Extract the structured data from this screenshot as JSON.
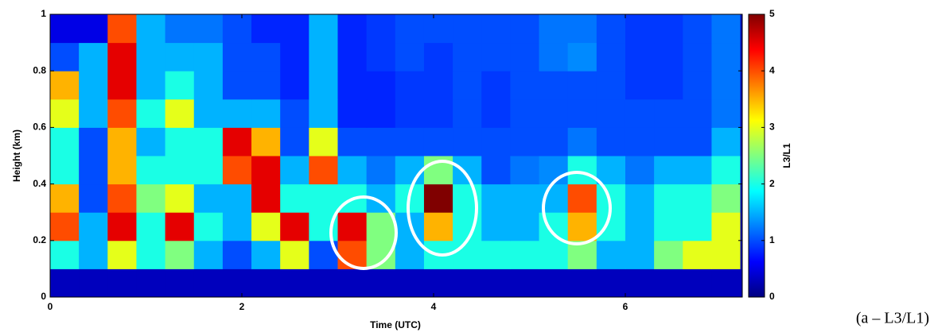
{
  "chart_data": {
    "type": "heatmap",
    "xlabel": "Time (UTC)",
    "ylabel": "Height (km)",
    "colorbar_label": "L3/L1",
    "caption": "(a – L3/L1)",
    "xlim": [
      0,
      7.22
    ],
    "xticks": [
      0,
      2,
      4,
      6
    ],
    "ylim": [
      0,
      1
    ],
    "yticks": [
      0,
      0.2,
      0.4,
      0.6,
      0.8,
      1
    ],
    "clim": [
      0,
      5
    ],
    "cticks": [
      0,
      1,
      2,
      3,
      4,
      5
    ],
    "colormap": "jet",
    "xbins": [
      0,
      0.3,
      0.6,
      0.9,
      1.2,
      1.5,
      1.8,
      2.1,
      2.4,
      2.7,
      3.0,
      3.3,
      3.6,
      3.9,
      4.2,
      4.5,
      4.8,
      5.1,
      5.4,
      5.7,
      6.0,
      6.3,
      6.6,
      6.9,
      7.2
    ],
    "ybins": [
      0,
      0.1,
      0.2,
      0.3,
      0.4,
      0.5,
      0.6,
      0.7,
      0.8,
      0.9,
      1.0
    ],
    "z": [
      [
        0.3,
        0.3,
        0.3,
        0.3,
        0.3,
        0.3,
        0.3,
        0.3,
        0.3,
        0.3,
        0.3,
        0.3,
        0.3,
        0.3,
        0.3,
        0.3,
        0.3,
        0.3,
        0.3,
        0.3,
        0.3,
        0.3,
        0.3,
        0.3
      ],
      [
        2,
        1.5,
        3,
        2,
        2.5,
        1.5,
        1,
        1.5,
        3,
        1,
        4,
        2.5,
        1.5,
        2,
        2,
        2,
        2,
        2,
        2.5,
        1.5,
        1.5,
        2.5,
        3,
        3
      ],
      [
        4,
        1.5,
        4.5,
        2,
        4.5,
        2,
        1.5,
        3,
        4.5,
        2,
        4.5,
        2.5,
        1.5,
        3.5,
        2,
        1.5,
        1.5,
        2,
        3.5,
        2,
        1.5,
        2,
        2,
        3
      ],
      [
        3.5,
        1,
        4,
        2.5,
        3,
        1.5,
        1.5,
        4.5,
        2,
        2,
        2,
        1.5,
        2,
        5,
        2,
        1.5,
        1.5,
        1.5,
        4,
        2,
        1.5,
        2,
        2,
        2.5
      ],
      [
        2,
        1,
        3.5,
        2,
        2,
        2,
        4,
        4.5,
        1.5,
        4,
        1.5,
        1.2,
        1.5,
        2.5,
        1.5,
        1,
        1.2,
        1.3,
        2,
        1.5,
        1.2,
        1.5,
        1.5,
        2
      ],
      [
        2,
        1,
        3.5,
        1.5,
        2,
        2,
        4.5,
        3.5,
        1,
        3,
        1,
        1,
        1,
        1,
        1,
        1,
        1,
        1,
        1.2,
        1,
        1,
        1,
        1,
        1.5
      ],
      [
        3,
        1.5,
        4,
        2,
        3,
        1.5,
        1.5,
        1.5,
        1,
        1.5,
        0.8,
        0.8,
        0.9,
        0.9,
        1,
        0.9,
        1,
        1,
        1,
        1,
        1,
        1,
        1,
        1.2
      ],
      [
        3.5,
        1.5,
        4.5,
        1.5,
        2,
        1.5,
        1,
        1,
        0.8,
        1.5,
        0.8,
        0.8,
        0.9,
        0.9,
        1,
        0.9,
        1,
        1,
        1,
        1,
        0.9,
        0.9,
        1,
        1.2
      ],
      [
        1,
        1.5,
        4.5,
        1.5,
        1.5,
        1.5,
        1,
        1,
        0.8,
        1.5,
        0.8,
        0.9,
        1,
        0.9,
        1,
        1,
        1,
        1.2,
        1.3,
        1,
        0.9,
        0.9,
        1,
        1.2
      ],
      [
        0.5,
        0.5,
        4,
        1.5,
        1.2,
        1.2,
        1,
        0.8,
        0.8,
        1.5,
        0.8,
        0.9,
        1,
        1,
        1,
        1,
        1,
        1.2,
        1.2,
        1,
        0.9,
        0.9,
        1,
        1.2
      ]
    ]
  }
}
